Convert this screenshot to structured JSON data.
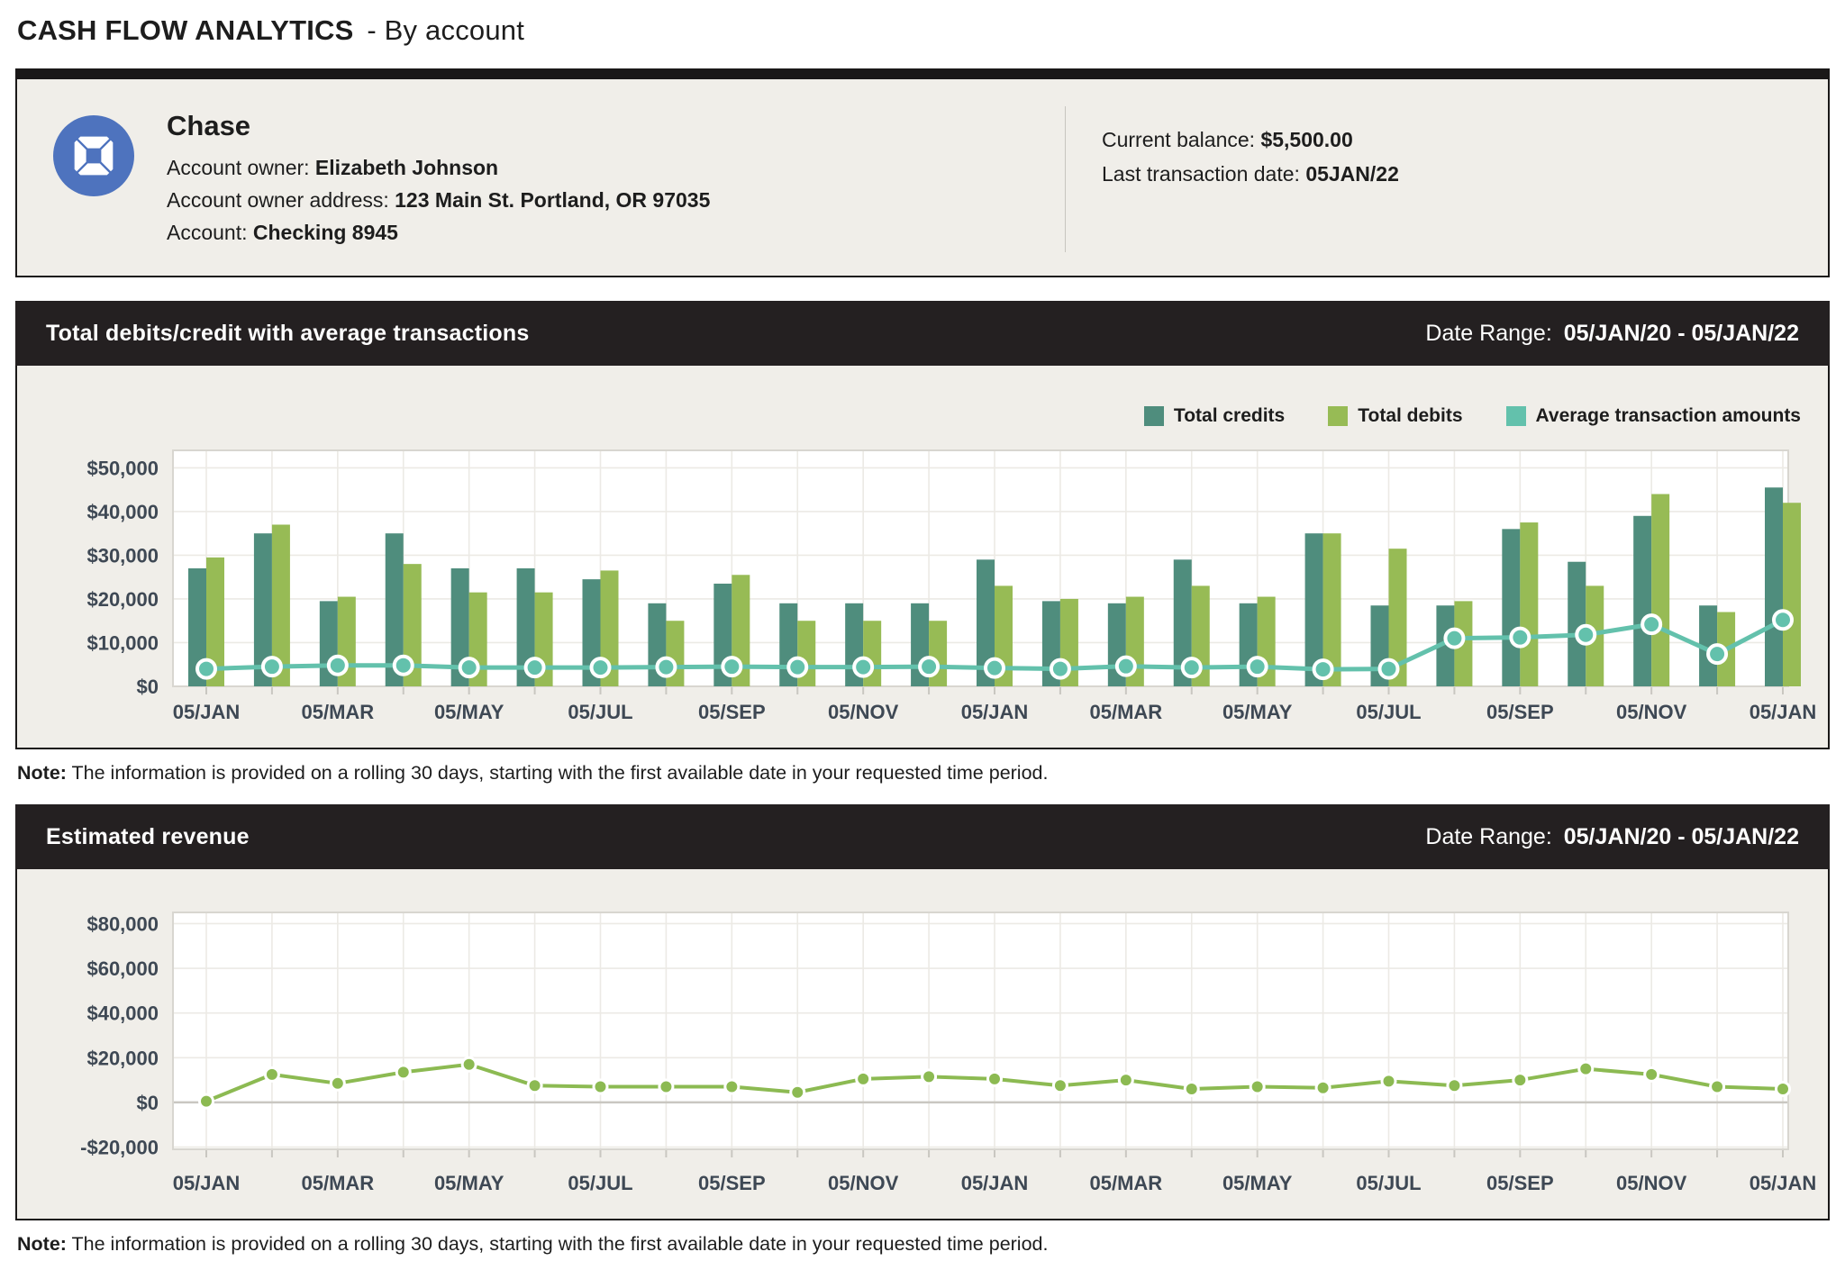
{
  "page_title": {
    "main": "CASH FLOW ANALYTICS",
    "suffix": "- By account"
  },
  "account_card": {
    "bank_name": "Chase",
    "logo_color": "#4E73BE",
    "details": [
      {
        "label": "Account owner:",
        "value": "Elizabeth Johnson"
      },
      {
        "label": "Account owner address:",
        "value": "123 Main St. Portland, OR 97035"
      },
      {
        "label": "Account:",
        "value": "Checking 8945"
      }
    ],
    "summary": [
      {
        "label": "Current balance:",
        "value": "$5,500.00"
      },
      {
        "label": "Last transaction date:",
        "value": "05JAN/22"
      }
    ]
  },
  "note": {
    "label": "Note:",
    "text": "The information is provided on a rolling 30 days, starting with the first available date in your requested time period."
  },
  "chart_data": [
    {
      "type": "bar",
      "title": "Total debits/credit with average transactions",
      "date_range_label": "Date Range:",
      "date_range": "05/JAN/20 - 05/JAN/22",
      "n_points": 25,
      "x_tick_labels": [
        "05/JAN",
        "05/MAR",
        "05/MAY",
        "05/JUL",
        "05/SEP",
        "05/NOV",
        "05/JAN",
        "05/MAR",
        "05/MAY",
        "05/JUL",
        "05/SEP",
        "05/NOV",
        "05/JAN"
      ],
      "ylim": [
        0,
        54000
      ],
      "yticks": [
        0,
        10000,
        20000,
        30000,
        40000,
        50000
      ],
      "ytick_labels": [
        "$0",
        "$10,000",
        "$20,000",
        "$30,000",
        "$40,000",
        "$50,000"
      ],
      "grid": true,
      "legend_position": "top-right",
      "series": [
        {
          "name": "Total credits",
          "render": "bar",
          "color": "#4F8D7D",
          "values": [
            27000,
            35000,
            19500,
            35000,
            27000,
            27000,
            24500,
            19000,
            23500,
            19000,
            19000,
            19000,
            29000,
            19500,
            19000,
            29000,
            19000,
            35000,
            18500,
            18500,
            36000,
            28500,
            39000,
            18500,
            45500
          ]
        },
        {
          "name": "Total debits",
          "render": "bar",
          "color": "#97BB55",
          "values": [
            29500,
            37000,
            20500,
            28000,
            21500,
            21500,
            26500,
            15000,
            25500,
            15000,
            15000,
            15000,
            23000,
            20000,
            20500,
            23000,
            20500,
            35000,
            31500,
            19500,
            37500,
            23000,
            44000,
            17000,
            42000
          ]
        },
        {
          "name": "Average transaction amounts",
          "render": "line",
          "color": "#63C1AC",
          "line_width": 5,
          "marker_radius": 10,
          "marker_stroke": 4,
          "values": [
            4000,
            4500,
            4800,
            4800,
            4300,
            4300,
            4300,
            4400,
            4500,
            4400,
            4400,
            4500,
            4200,
            4000,
            4600,
            4300,
            4500,
            3900,
            4000,
            11000,
            11200,
            11800,
            14200,
            7400,
            15200
          ]
        }
      ]
    },
    {
      "type": "line",
      "title": "Estimated revenue",
      "date_range_label": "Date Range:",
      "date_range": "05/JAN/20 - 05/JAN/22",
      "n_points": 25,
      "x_tick_labels": [
        "05/JAN",
        "05/MAR",
        "05/MAY",
        "05/JUL",
        "05/SEP",
        "05/NOV",
        "05/JAN",
        "05/MAR",
        "05/MAY",
        "05/JUL",
        "05/SEP",
        "05/NOV",
        "05/JAN"
      ],
      "ylim": [
        -21000,
        85000
      ],
      "yticks": [
        -20000,
        0,
        20000,
        40000,
        60000,
        80000
      ],
      "ytick_labels": [
        "-$20,000",
        "$0",
        "$20,000",
        "$40,000",
        "$60,000",
        "$80,000"
      ],
      "grid": true,
      "legend_position": "none",
      "series": [
        {
          "name": "Estimated revenue",
          "render": "line",
          "color": "#8CBA52",
          "line_width": 4,
          "marker_radius": 7.5,
          "marker_stroke": 3,
          "values": [
            500,
            12500,
            8500,
            13500,
            17000,
            7500,
            7000,
            7000,
            7000,
            4500,
            10500,
            11500,
            10500,
            7500,
            10000,
            6000,
            7000,
            6500,
            9500,
            7500,
            10000,
            15000,
            12500,
            7000,
            6000
          ]
        }
      ]
    }
  ]
}
